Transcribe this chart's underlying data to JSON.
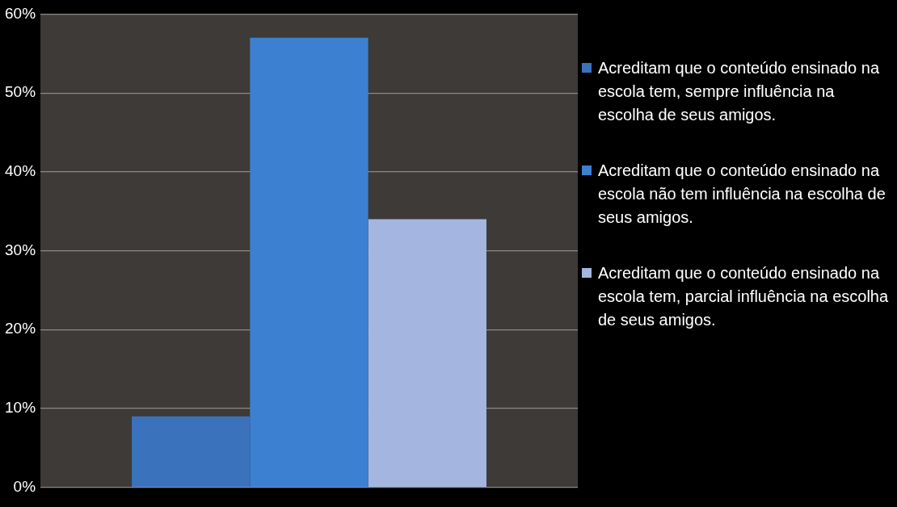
{
  "chart_data": {
    "type": "bar",
    "categories": [
      null
    ],
    "series": [
      {
        "name": "Acreditam que o conteúdo ensinado na escola tem, sempre influência na escolha de seus amigos.",
        "color": "#3a72bc",
        "values": [
          9
        ]
      },
      {
        "name": "Acreditam que o conteúdo ensinado na escola não tem influência na escolha de seus amigos.",
        "color": "#3c80d2",
        "values": [
          57
        ]
      },
      {
        "name": "Acreditam que o conteúdo ensinado na escola tem, parcial influência na escolha de seus amigos.",
        "color": "#a4b6e0",
        "values": [
          34
        ]
      }
    ],
    "ylim": [
      0,
      60
    ],
    "yticks": [
      {
        "value": 0,
        "label": "0%"
      },
      {
        "value": 10,
        "label": "10%"
      },
      {
        "value": 20,
        "label": "20%"
      },
      {
        "value": 30,
        "label": "30%"
      },
      {
        "value": 40,
        "label": "40%"
      },
      {
        "value": 50,
        "label": "50%"
      },
      {
        "value": 60,
        "label": "60%"
      }
    ],
    "grid": "y",
    "legend": "right"
  }
}
